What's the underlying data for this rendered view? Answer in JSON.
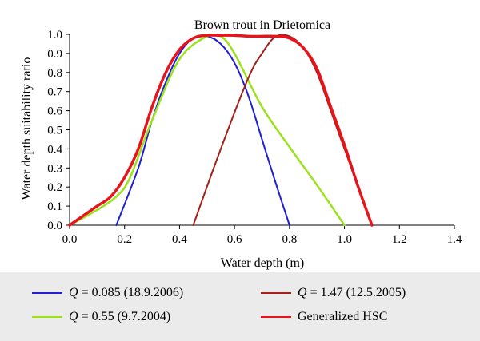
{
  "chart_data": {
    "type": "line",
    "title": "Brown trout in Drietomica",
    "xlabel": "Water depth (m)",
    "ylabel": "Water depth suitability ratio",
    "xlim": [
      0.0,
      1.4
    ],
    "ylim": [
      0.0,
      1.0
    ],
    "x_ticks": [
      "0.0",
      "0.2",
      "0.4",
      "0.6",
      "0.8",
      "1.0",
      "1.2",
      "1.4"
    ],
    "y_ticks": [
      "0.0",
      "0.1",
      "0.2",
      "0.3",
      "0.4",
      "0.5",
      "0.6",
      "0.7",
      "0.8",
      "0.9",
      "1.0"
    ],
    "grid": false,
    "legend_position": "bottom",
    "series": [
      {
        "name": "Q = 0.085 (18.9.2006)",
        "color": "#1f1fd6",
        "x": [
          0.17,
          0.25,
          0.3,
          0.35,
          0.4,
          0.45,
          0.5,
          0.55,
          0.6,
          0.65,
          0.7,
          0.75,
          0.8
        ],
        "y": [
          0.0,
          0.3,
          0.55,
          0.75,
          0.9,
          0.98,
          0.99,
          0.95,
          0.85,
          0.68,
          0.45,
          0.22,
          0.0
        ]
      },
      {
        "name": "Q = 0.55 (9.7.2004)",
        "color": "#9be21c",
        "x": [
          0.0,
          0.1,
          0.17,
          0.22,
          0.3,
          0.4,
          0.5,
          0.55,
          0.6,
          0.7,
          0.8,
          0.9,
          1.0
        ],
        "y": [
          0.0,
          0.08,
          0.15,
          0.25,
          0.55,
          0.87,
          0.99,
          0.99,
          0.9,
          0.62,
          0.41,
          0.21,
          0.0
        ]
      },
      {
        "name": "Q = 1.47 (12.5.2005)",
        "color": "#a52019",
        "x": [
          0.45,
          0.55,
          0.65,
          0.7,
          0.75,
          0.8,
          0.85,
          0.9,
          0.95,
          1.0,
          1.05,
          1.1
        ],
        "y": [
          0.0,
          0.4,
          0.77,
          0.9,
          0.99,
          0.99,
          0.93,
          0.8,
          0.6,
          0.4,
          0.2,
          0.0
        ]
      },
      {
        "name": "Generalized HSC",
        "color": "#e8141c",
        "x": [
          0.0,
          0.05,
          0.1,
          0.15,
          0.2,
          0.25,
          0.3,
          0.35,
          0.4,
          0.45,
          0.5,
          0.55,
          0.6,
          0.65,
          0.7,
          0.75,
          0.8,
          0.85,
          0.9,
          0.95,
          1.0,
          1.05,
          1.1
        ],
        "y": [
          0.0,
          0.05,
          0.1,
          0.15,
          0.25,
          0.4,
          0.62,
          0.8,
          0.92,
          0.98,
          0.995,
          0.995,
          0.995,
          0.99,
          0.99,
          0.99,
          0.98,
          0.93,
          0.82,
          0.62,
          0.42,
          0.2,
          0.0
        ]
      }
    ]
  }
}
